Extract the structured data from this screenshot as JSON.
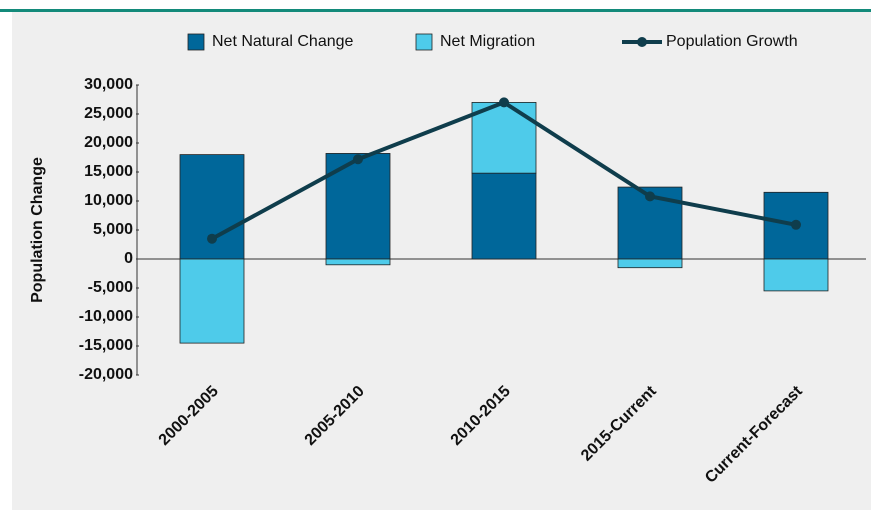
{
  "chart_data": {
    "type": "bar",
    "categories": [
      "2000-2005",
      "2005-2010",
      "2010-2015",
      "2015-Current",
      "Current-Forecast"
    ],
    "series": [
      {
        "name": "Net Natural Change",
        "color": "#00679a",
        "values": [
          18000,
          18200,
          14800,
          12400,
          11500
        ]
      },
      {
        "name": "Net Migration",
        "color": "#4ecbea",
        "values": [
          -14500,
          -1000,
          12200,
          -1500,
          -5500
        ]
      },
      {
        "name": "Population Growth",
        "color": "#0f3d4c",
        "type": "line",
        "values": [
          3500,
          17200,
          27000,
          10800,
          5900
        ]
      }
    ],
    "ylabel": "Population Change",
    "ylim": [
      -20000,
      30000
    ],
    "yticks": [
      {
        "value": -20000,
        "label": "-20,000"
      },
      {
        "value": -15000,
        "label": "-15,000"
      },
      {
        "value": -10000,
        "label": "-10,000"
      },
      {
        "value": -5000,
        "label": "-5,000"
      },
      0,
      {
        "value": 5000,
        "label": "5,000"
      },
      {
        "value": 10000,
        "label": "10,000"
      },
      {
        "value": 15000,
        "label": "15,000"
      },
      {
        "value": 20000,
        "label": "20,000"
      },
      {
        "value": 25000,
        "label": "25,000"
      },
      {
        "value": 30000,
        "label": "30,000"
      }
    ],
    "stacked": true
  }
}
